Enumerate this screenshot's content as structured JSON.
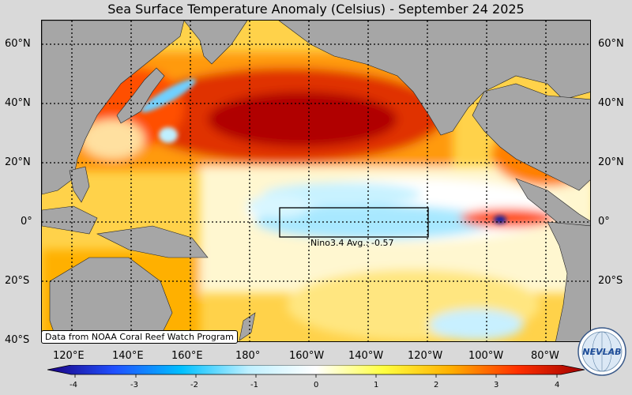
{
  "title": "Sea Surface Temperature Anomaly (Celsius) - September 24 2025",
  "lat_labels_left": [
    "60°N",
    "40°N",
    "20°N",
    "0°",
    "20°S",
    "40°S"
  ],
  "lat_labels_right": [
    "60°N",
    "40°N",
    "20°N",
    "0°",
    "20°S"
  ],
  "lon_labels": [
    "120°E",
    "140°E",
    "160°E",
    "180°",
    "160°W",
    "140°W",
    "120°W",
    "100°W",
    "80°W"
  ],
  "credit": "Data from NOAA Coral Reef Watch Program",
  "nino_box_label": "Nino3.4 Avg.: -0.57",
  "colorbar": {
    "ticks": [
      "-4",
      "-3",
      "-2",
      "-1",
      "0",
      "1",
      "2",
      "3",
      "4"
    ],
    "min": -4,
    "max": 4,
    "colors": [
      "#1a0080",
      "#2050ff",
      "#00c0ff",
      "#c0f0ff",
      "#ffffff",
      "#ffff40",
      "#ffb000",
      "#ff3000",
      "#a00000"
    ]
  },
  "logo_text": "NEVLAB",
  "colors": {
    "land": "#a6a6a6",
    "background": "#d9d9d9",
    "warm": "#ff8c00",
    "hot": "#c00000",
    "cool": "#7fd4ff"
  }
}
